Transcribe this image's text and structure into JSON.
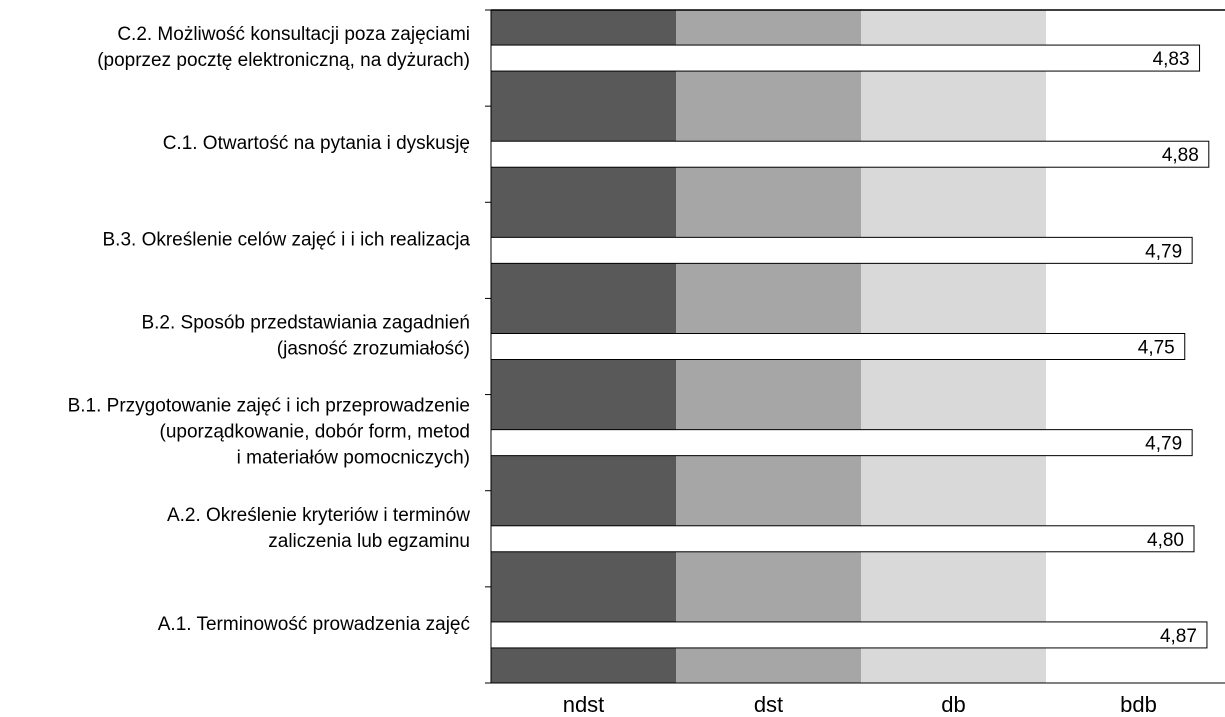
{
  "chart_data": {
    "type": "bar",
    "orientation": "horizontal",
    "title": "",
    "xlabel": "",
    "ylabel": "",
    "xlim": [
      1,
      5
    ],
    "grid": false,
    "legend": "none",
    "bands": [
      {
        "label": "ndst",
        "color": "#595959"
      },
      {
        "label": "dst",
        "color": "#a6a6a6"
      },
      {
        "label": "db",
        "color": "#d9d9d9"
      },
      {
        "label": "bdb",
        "color": "#ffffff"
      }
    ],
    "categories": [
      [
        "C.2. Możliwość konsultacji poza zajęciami",
        "(poprzez pocztę elektroniczną, na dyżurach)"
      ],
      [
        "C.1. Otwartość na pytania i dyskusję"
      ],
      [
        "B.3. Określenie celów zajęć i i ich realizacja"
      ],
      [
        "B.2. Sposób przedstawiania zagadnień",
        "(jasność zrozumiałość)"
      ],
      [
        "B.1. Przygotowanie zajęć i ich przeprowadzenie",
        "(uporządkowanie, dobór form, metod",
        "i materiałów pomocniczych)"
      ],
      [
        "A.2. Określenie kryteriów i terminów",
        "zaliczenia lub egzaminu"
      ],
      [
        "A.1. Terminowość prowadzenia zajęć"
      ]
    ],
    "values": [
      4.83,
      4.88,
      4.79,
      4.75,
      4.79,
      4.8,
      4.87
    ],
    "value_labels": [
      "4,83",
      "4,88",
      "4,79",
      "4,75",
      "4,79",
      "4,80",
      "4,87"
    ],
    "bar_color": "#ffffff"
  }
}
